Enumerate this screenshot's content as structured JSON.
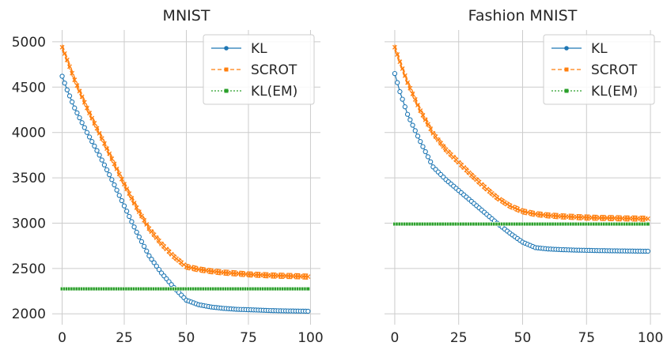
{
  "chart_data": [
    {
      "type": "line",
      "title": "MNIST",
      "xlabel": "",
      "ylabel": "",
      "xlim": [
        -4,
        104
      ],
      "ylim": [
        1880,
        5130
      ],
      "xticks": [
        0,
        25,
        50,
        75,
        100
      ],
      "yticks": [
        2000,
        2500,
        3000,
        3500,
        4000,
        4500,
        5000
      ],
      "grid": true,
      "legend_position": "top-right",
      "series": [
        {
          "name": "KL",
          "color": "#1f77b4",
          "marker": "circle",
          "x": [
            0,
            2,
            5,
            10,
            15,
            20,
            25,
            30,
            35,
            40,
            45,
            50,
            55,
            60,
            65,
            70,
            75,
            80,
            85,
            90,
            95,
            99
          ],
          "y": [
            4620,
            4470,
            4270,
            4000,
            3750,
            3480,
            3190,
            2900,
            2640,
            2450,
            2290,
            2150,
            2100,
            2075,
            2060,
            2050,
            2045,
            2040,
            2035,
            2032,
            2030,
            2028
          ]
        },
        {
          "name": "SCROT",
          "color": "#ff7f0e",
          "marker": "x",
          "x": [
            0,
            2,
            5,
            10,
            15,
            20,
            25,
            30,
            35,
            40,
            45,
            50,
            55,
            60,
            65,
            70,
            75,
            80,
            85,
            90,
            95,
            99
          ],
          "y": [
            4940,
            4800,
            4580,
            4270,
            3990,
            3710,
            3430,
            3170,
            2940,
            2770,
            2630,
            2520,
            2490,
            2470,
            2455,
            2445,
            2435,
            2428,
            2422,
            2418,
            2414,
            2410
          ]
        },
        {
          "name": "KL(EM)",
          "color": "#2ca02c",
          "marker": "square",
          "x": [
            0,
            10,
            20,
            30,
            40,
            50,
            60,
            70,
            80,
            90,
            99
          ],
          "y": [
            2275,
            2275,
            2275,
            2275,
            2275,
            2275,
            2275,
            2275,
            2275,
            2275,
            2275
          ]
        }
      ]
    },
    {
      "type": "line",
      "title": "Fashion MNIST",
      "xlabel": "",
      "ylabel": "",
      "xlim": [
        -4,
        104
      ],
      "ylim": [
        1880,
        5130
      ],
      "xticks": [
        0,
        25,
        50,
        75,
        100
      ],
      "yticks": [
        2000,
        2500,
        3000,
        3500,
        4000,
        4500,
        5000
      ],
      "grid": true,
      "legend_position": "top-right",
      "series": [
        {
          "name": "KL",
          "color": "#1f77b4",
          "marker": "circle",
          "x": [
            0,
            2,
            5,
            10,
            15,
            20,
            25,
            30,
            35,
            40,
            45,
            50,
            55,
            60,
            65,
            70,
            75,
            80,
            85,
            90,
            95,
            99
          ],
          "y": [
            4650,
            4450,
            4200,
            3900,
            3620,
            3480,
            3360,
            3240,
            3120,
            3000,
            2890,
            2790,
            2730,
            2715,
            2708,
            2703,
            2700,
            2697,
            2695,
            2693,
            2691,
            2690
          ]
        },
        {
          "name": "SCROT",
          "color": "#ff7f0e",
          "marker": "x",
          "x": [
            0,
            2,
            5,
            10,
            15,
            20,
            25,
            30,
            35,
            40,
            45,
            50,
            55,
            60,
            65,
            70,
            75,
            80,
            85,
            90,
            95,
            99
          ],
          "y": [
            4940,
            4780,
            4550,
            4240,
            3990,
            3810,
            3670,
            3530,
            3400,
            3280,
            3190,
            3130,
            3100,
            3085,
            3075,
            3068,
            3062,
            3058,
            3055,
            3052,
            3050,
            3048
          ]
        },
        {
          "name": "KL(EM)",
          "color": "#2ca02c",
          "marker": "square",
          "x": [
            0,
            10,
            20,
            30,
            40,
            50,
            60,
            70,
            80,
            90,
            99
          ],
          "y": [
            2990,
            2990,
            2990,
            2990,
            2990,
            2990,
            2990,
            2990,
            2990,
            2990,
            2990
          ]
        }
      ]
    }
  ]
}
